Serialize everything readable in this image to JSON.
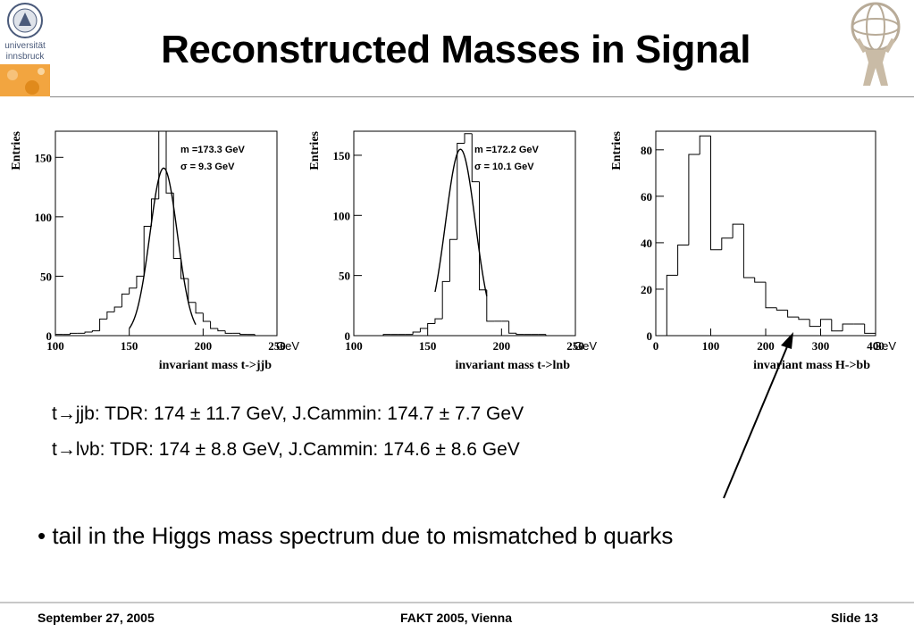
{
  "slide": {
    "title": "Reconstructed Masses in Signal",
    "logo_left_text": [
      "universität",
      "innsbruck"
    ],
    "results": [
      "t→jjb:  TDR: 174 ± 11.7 GeV, J.Cammin: 174.7 ± 7.7 GeV",
      "t→lνb: TDR: 174 ± 8.8 GeV, J.Cammin: 174.6 ± 8.6 GeV"
    ],
    "bullet": "• tail in the Higgs mass spectrum due to mismatched b quarks",
    "footer": {
      "date": "September 27, 2005",
      "event": "FAKT 2005, Vienna",
      "slide_number": "Slide 13"
    }
  },
  "chart_data": [
    {
      "type": "bar",
      "xlabel": "invariant mass t->jjb",
      "ylabel": "Entries",
      "unit": "GeV",
      "xlim": [
        100,
        250
      ],
      "ylim": [
        0,
        172
      ],
      "xticks": [
        100,
        150,
        200,
        250
      ],
      "yticks": [
        0,
        50,
        100,
        150
      ],
      "bin_edges": [
        100,
        105,
        110,
        115,
        120,
        125,
        130,
        135,
        140,
        145,
        150,
        155,
        160,
        165,
        170,
        175,
        180,
        185,
        190,
        195,
        200,
        205,
        210,
        215,
        220,
        225,
        230,
        235,
        240,
        245,
        250
      ],
      "values": [
        1,
        1,
        2,
        2,
        3,
        4,
        14,
        20,
        24,
        35,
        40,
        50,
        92,
        115,
        172,
        120,
        65,
        48,
        28,
        19,
        12,
        6,
        4,
        2,
        2,
        1,
        1,
        0,
        0,
        0
      ],
      "fit": {
        "mean": 173.3,
        "sigma": 9.3,
        "amplitude": 141,
        "range": [
          150,
          195
        ]
      },
      "annotations": [
        "m =173.3 GeV",
        "σ = 9.3 GeV"
      ]
    },
    {
      "type": "bar",
      "xlabel": "invariant mass t->lnb",
      "ylabel": "Entries",
      "unit": "GeV",
      "xlim": [
        100,
        250
      ],
      "ylim": [
        0,
        170
      ],
      "xticks": [
        100,
        150,
        200,
        250
      ],
      "yticks": [
        0,
        50,
        100,
        150
      ],
      "bin_edges": [
        100,
        105,
        110,
        115,
        120,
        125,
        130,
        135,
        140,
        145,
        150,
        155,
        160,
        165,
        170,
        175,
        180,
        185,
        190,
        195,
        200,
        205,
        210,
        215,
        220,
        225,
        230,
        235,
        240,
        245,
        250
      ],
      "values": [
        0,
        0,
        0,
        0,
        1,
        1,
        1,
        1,
        3,
        6,
        10,
        14,
        45,
        80,
        160,
        168,
        128,
        38,
        12,
        12,
        12,
        2,
        1,
        1,
        1,
        1,
        0,
        0,
        0,
        0
      ],
      "fit": {
        "mean": 172.2,
        "sigma": 10.1,
        "amplitude": 155,
        "range": [
          155,
          190
        ]
      },
      "annotations": [
        "m =172.2 GeV",
        "σ = 10.1 GeV"
      ]
    },
    {
      "type": "bar",
      "xlabel": "invariant mass H->bb",
      "ylabel": "Entries",
      "unit": "GeV",
      "xlim": [
        0,
        400
      ],
      "ylim": [
        0,
        88
      ],
      "xticks": [
        0,
        100,
        200,
        300,
        400
      ],
      "yticks": [
        0,
        20,
        40,
        60,
        80
      ],
      "bin_edges": [
        0,
        20,
        40,
        60,
        80,
        100,
        120,
        140,
        160,
        180,
        200,
        220,
        240,
        260,
        280,
        300,
        320,
        340,
        360,
        380,
        400
      ],
      "values": [
        0,
        26,
        39,
        78,
        86,
        37,
        42,
        48,
        25,
        23,
        12,
        11,
        8,
        7,
        4,
        7,
        2,
        5,
        5,
        1
      ],
      "annotations": []
    }
  ]
}
